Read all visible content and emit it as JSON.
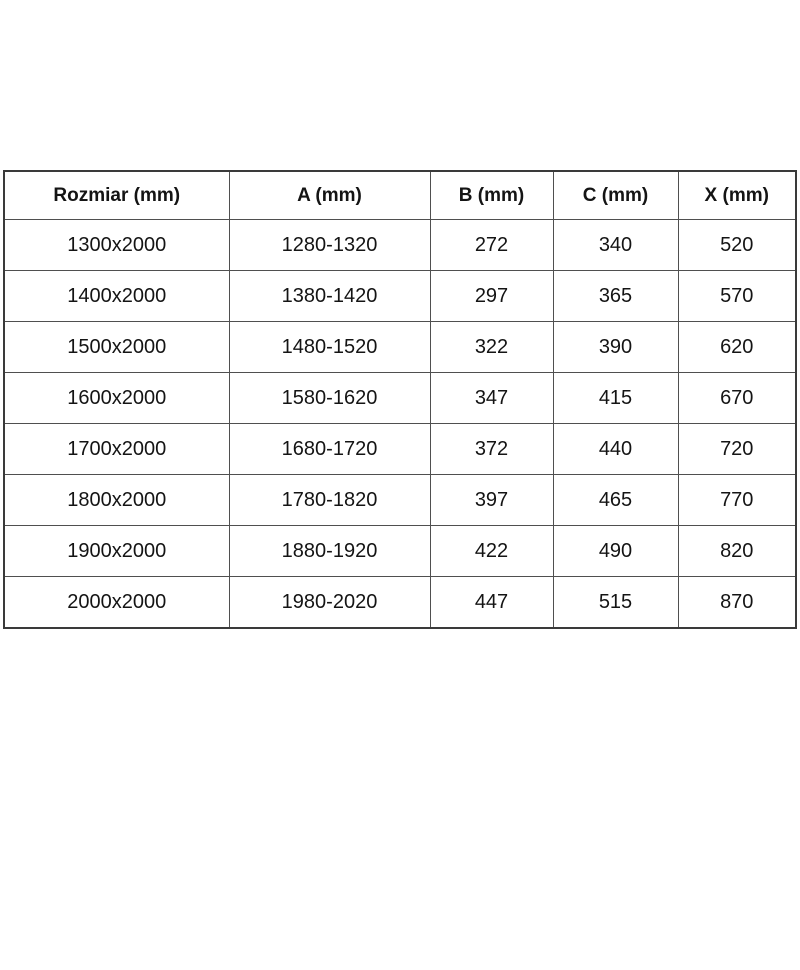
{
  "style": {
    "inner_border_color": "#4f4f4f",
    "outer_border_color": "#3a3a3a",
    "text_color": "#141414",
    "background_color": "#ffffff"
  },
  "chart_data": {
    "type": "table",
    "columns": [
      "Rozmiar (mm)",
      "A (mm)",
      "B (mm)",
      "C (mm)",
      "X (mm)"
    ],
    "rows": [
      [
        "1300x2000",
        "1280-1320",
        "272",
        "340",
        "520"
      ],
      [
        "1400x2000",
        "1380-1420",
        "297",
        "365",
        "570"
      ],
      [
        "1500x2000",
        "1480-1520",
        "322",
        "390",
        "620"
      ],
      [
        "1600x2000",
        "1580-1620",
        "347",
        "415",
        "670"
      ],
      [
        "1700x2000",
        "1680-1720",
        "372",
        "440",
        "720"
      ],
      [
        "1800x2000",
        "1780-1820",
        "397",
        "465",
        "770"
      ],
      [
        "1900x2000",
        "1880-1920",
        "422",
        "490",
        "820"
      ],
      [
        "2000x2000",
        "1980-2020",
        "447",
        "515",
        "870"
      ]
    ]
  }
}
